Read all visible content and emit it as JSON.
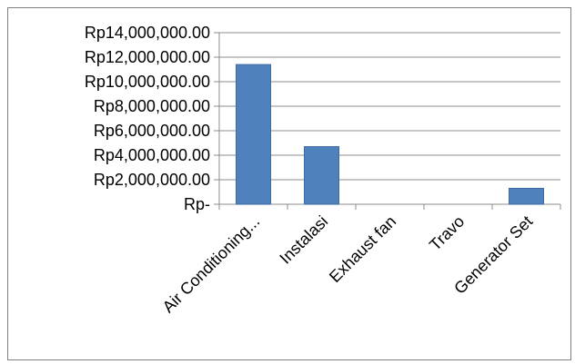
{
  "chart_data": {
    "type": "bar",
    "categories": [
      "Air Conditioning...",
      "Instalasi",
      "Exhaust fan",
      "Travo",
      "Generator Set"
    ],
    "values": [
      11400000,
      4700000,
      0,
      0,
      1300000
    ],
    "ylim": [
      0,
      14000000
    ],
    "yticks": [
      {
        "value": 0,
        "label": "Rp-"
      },
      {
        "value": 2000000,
        "label": "Rp2,000,000.00"
      },
      {
        "value": 4000000,
        "label": "Rp4,000,000.00"
      },
      {
        "value": 6000000,
        "label": "Rp6,000,000.00"
      },
      {
        "value": 8000000,
        "label": "Rp8,000,000.00"
      },
      {
        "value": 10000000,
        "label": "Rp10,000,000.00"
      },
      {
        "value": 12000000,
        "label": "Rp12,000,000.00"
      },
      {
        "value": 14000000,
        "label": "Rp14,000,000.00"
      }
    ],
    "title": "",
    "xlabel": "",
    "ylabel": "",
    "grid": true,
    "legend": "none",
    "colors": {
      "bar": "#4f81bd",
      "bar_edge": "#3c6aa4",
      "grid": "#8c8c8c",
      "axis": "#8c8c8c"
    }
  }
}
